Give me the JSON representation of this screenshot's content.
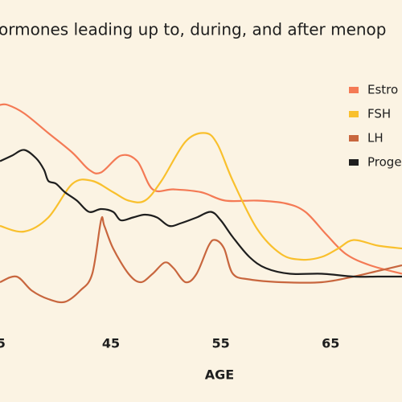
{
  "chart_data": {
    "type": "line",
    "title": "ormones leading up to, during, and after menop",
    "xlabel": "AGE",
    "xlim": [
      34.9,
      71.5
    ],
    "ylim": [
      0,
      100
    ],
    "xticks": [
      {
        "value": 35,
        "label": "5"
      },
      45,
      55,
      65
    ],
    "series": [
      {
        "name": "Estro",
        "color": "#f47a55",
        "x": [
          34.9,
          35.6,
          37.1,
          39.3,
          41.5,
          43.0,
          44.1,
          45.9,
          47.4,
          48.8,
          50.7,
          53.2,
          55.4,
          58.3,
          60.9,
          62.7,
          64.6,
          66.4,
          68.6,
          71.5
        ],
        "values": [
          77,
          77,
          74,
          67,
          60,
          54,
          53,
          59,
          57,
          47,
          47,
          46,
          43,
          43,
          42,
          39,
          31,
          24,
          20,
          17
        ]
      },
      {
        "name": "FSH",
        "color": "#f9c02d",
        "x": [
          34.9,
          37.1,
          39.3,
          41.5,
          43.3,
          45.2,
          46.6,
          48.1,
          49.6,
          51.8,
          53.6,
          54.7,
          56.1,
          58.3,
          60.5,
          62.4,
          64.2,
          65.7,
          67.1,
          69.3,
          71.5
        ],
        "values": [
          34,
          32,
          37,
          49,
          50,
          46,
          43,
          43,
          50,
          64,
          67,
          63,
          50,
          33,
          24,
          22,
          23,
          26,
          29,
          27,
          26
        ]
      },
      {
        "name": "LH",
        "color": "#c8663e",
        "x": [
          34.9,
          36.4,
          37.8,
          39.3,
          40.8,
          42.2,
          43.3,
          44.1,
          44.4,
          45.2,
          46.6,
          47.7,
          48.8,
          49.9,
          50.7,
          51.8,
          52.8,
          53.9,
          54.5,
          55.3,
          56.1,
          57.6,
          60.5,
          64.2,
          67.1,
          69.3,
          71.5
        ],
        "values": [
          14,
          16,
          11,
          8,
          7,
          11,
          17,
          36,
          34,
          26,
          17,
          14,
          17,
          21,
          19,
          14,
          17,
          27,
          29,
          26,
          17,
          15,
          14,
          14,
          16,
          18,
          20
        ]
      },
      {
        "name": "Proge",
        "color": "#1e1e1e",
        "x": [
          34.9,
          36.0,
          37.1,
          38.2,
          38.9,
          39.3,
          40.0,
          40.8,
          41.9,
          43.0,
          44.1,
          45.2,
          45.9,
          47.0,
          48.1,
          49.2,
          50.3,
          51.4,
          52.8,
          54.1,
          55.0,
          56.1,
          57.6,
          59.1,
          61.3,
          64.2,
          67.1,
          69.3,
          71.5
        ],
        "values": [
          57,
          59,
          61,
          58,
          54,
          50,
          49,
          46,
          43,
          39,
          40,
          39,
          36,
          37,
          38,
          37,
          34,
          35,
          37,
          39,
          36,
          30,
          23,
          19,
          17,
          17,
          16,
          16,
          16
        ]
      }
    ]
  }
}
